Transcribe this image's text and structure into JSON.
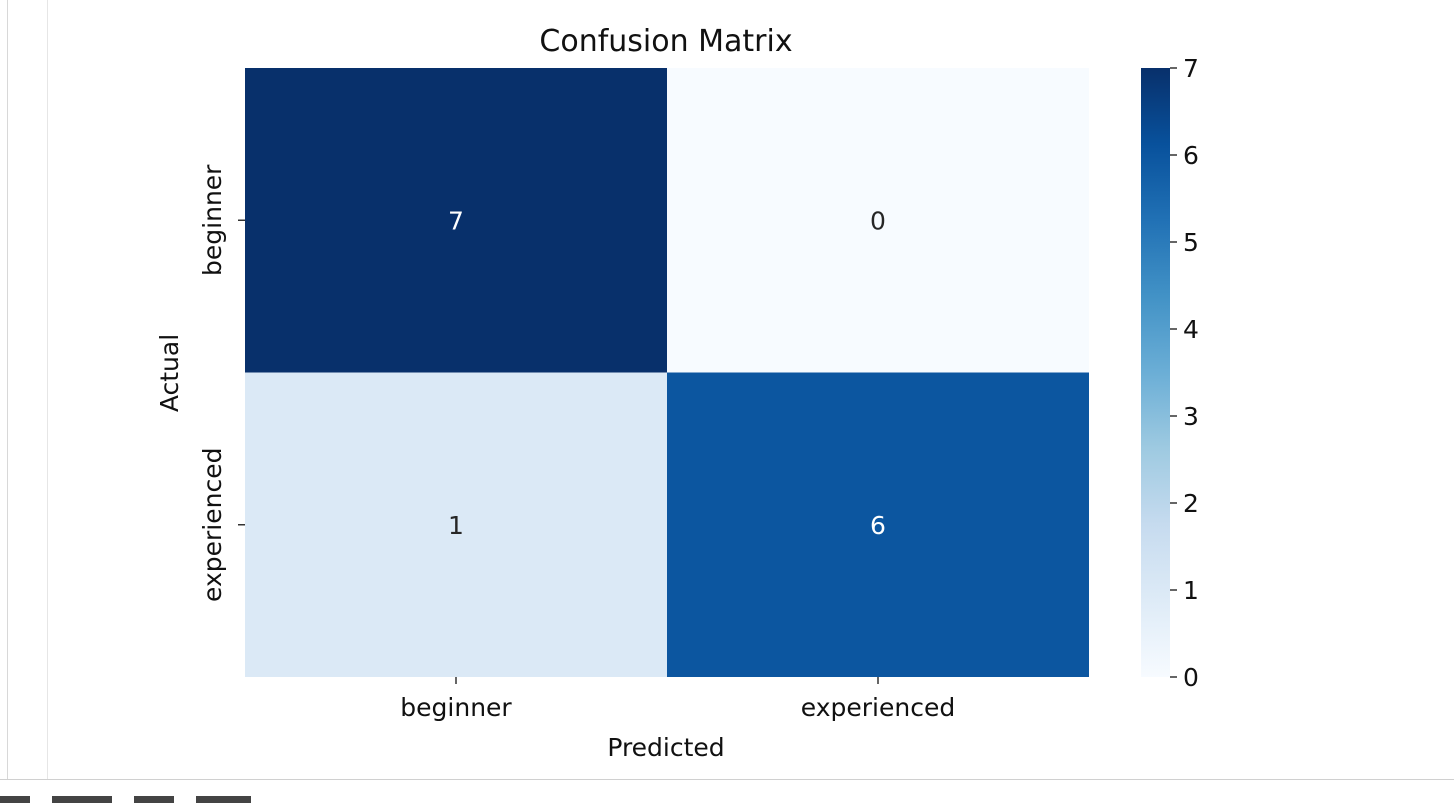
{
  "chart_data": {
    "type": "heatmap",
    "title": "Confusion Matrix",
    "xlabel": "Predicted",
    "ylabel": "Actual",
    "x_categories": [
      "beginner",
      "experienced"
    ],
    "y_categories": [
      "beginner",
      "experienced"
    ],
    "values": [
      [
        7,
        0
      ],
      [
        1,
        6
      ]
    ],
    "colormap": "Blues",
    "colorbar": {
      "range": [
        0,
        7
      ],
      "ticks": [
        0,
        1,
        2,
        3,
        4,
        5,
        6,
        7
      ]
    },
    "grid": false,
    "annotations": true
  }
}
